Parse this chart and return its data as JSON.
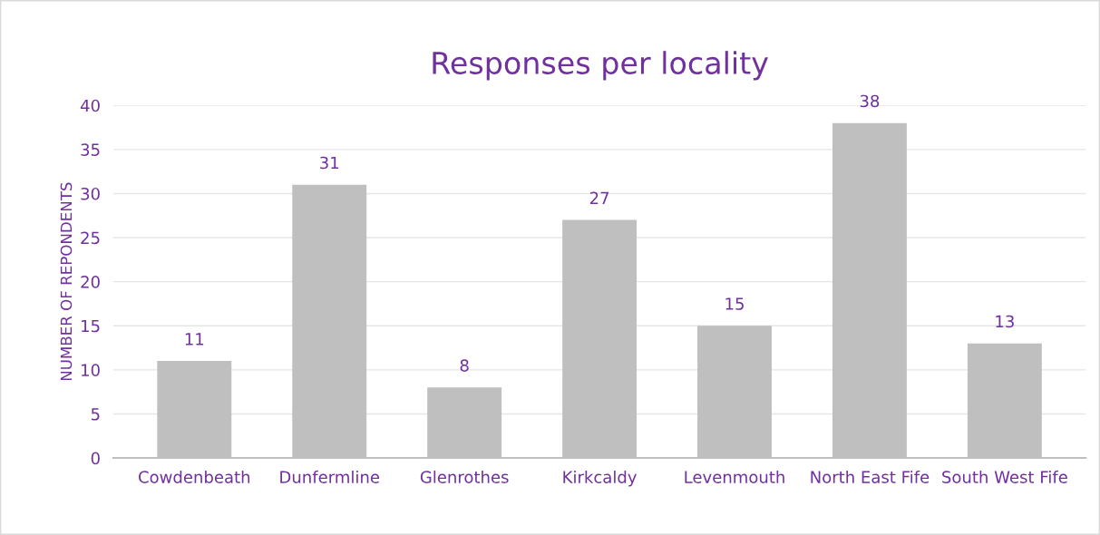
{
  "chart_data": {
    "type": "bar",
    "title": "Responses per locality",
    "ylabel": "NUMBER OF REPONDENTS",
    "categories": [
      "Cowdenbeath",
      "Dunfermline",
      "Glenrothes",
      "Kirkcaldy",
      "Levenmouth",
      "North East Fife",
      "South West Fife"
    ],
    "values": [
      11,
      31,
      8,
      27,
      15,
      38,
      13
    ],
    "color": "#bfbfbf",
    "ylim": [
      0,
      40
    ],
    "yticks": [
      0,
      5,
      10,
      15,
      20,
      25,
      30,
      35,
      40
    ],
    "grid": "y",
    "data_labels": true,
    "legend": false
  }
}
